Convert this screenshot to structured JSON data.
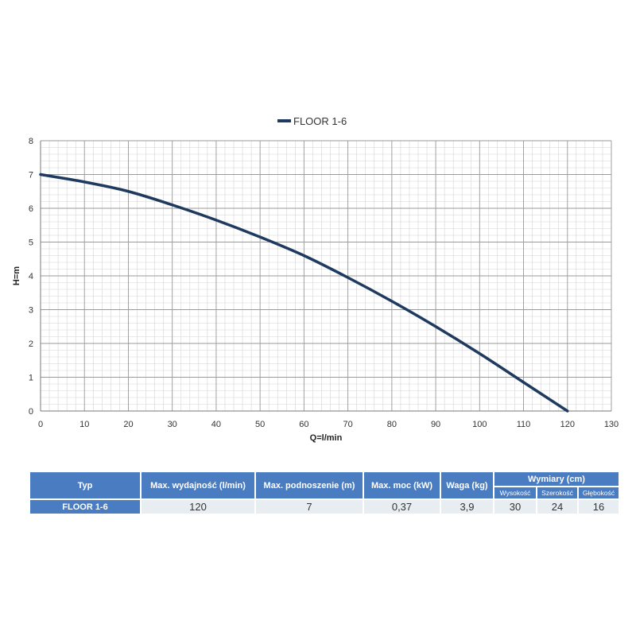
{
  "chart_data": {
    "type": "line",
    "legend": "FLOOR 1-6",
    "legend_position": "top",
    "xlabel": "Q=l/min",
    "ylabel": "H=m",
    "xlim": [
      0,
      130
    ],
    "ylim": [
      0,
      8
    ],
    "x_ticks": [
      0,
      10,
      20,
      30,
      40,
      50,
      60,
      70,
      80,
      90,
      100,
      110,
      120,
      130
    ],
    "y_ticks": [
      0,
      1,
      2,
      3,
      4,
      5,
      6,
      7,
      8
    ],
    "grid": true,
    "series": [
      {
        "name": "FLOOR 1-6",
        "color": "#1f3a5f",
        "x": [
          0,
          10,
          20,
          30,
          40,
          50,
          60,
          70,
          80,
          90,
          100,
          110,
          120
        ],
        "y": [
          7.0,
          6.78,
          6.5,
          6.1,
          5.65,
          5.15,
          4.6,
          3.95,
          3.25,
          2.5,
          1.7,
          0.85,
          0.0
        ]
      }
    ]
  },
  "table": {
    "headers": {
      "typ": "Typ",
      "max_flow": "Max. wydajność (l/min)",
      "max_head": "Max. podnoszenie (m)",
      "max_power": "Max. moc (kW)",
      "weight": "Waga (kg)",
      "dimensions": "Wymiary (cm)",
      "height": "Wysokość",
      "width": "Szerokość",
      "depth": "Głębokość"
    },
    "row": {
      "typ": "FLOOR 1-6",
      "max_flow": "120",
      "max_head": "7",
      "max_power": "0,37",
      "weight": "3,9",
      "height": "30",
      "width": "24",
      "depth": "16"
    },
    "header_color": "#4a7cc2",
    "cell_color": "#e8edf2"
  }
}
